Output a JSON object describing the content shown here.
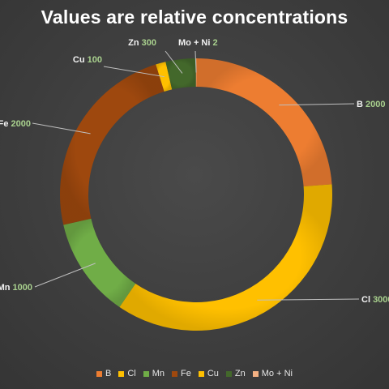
{
  "chart_data": {
    "type": "pie",
    "title": "Values are relative concentrations",
    "categories": [
      "B",
      "Cl",
      "Mn",
      "Fe",
      "Cu",
      "Zn",
      "Mo + Ni"
    ],
    "values": [
      2000,
      3000,
      1000,
      2000,
      100,
      300,
      2
    ],
    "colors": [
      "#ed7d31",
      "#ffc000",
      "#70ad47",
      "#9e480e",
      "#ffc000",
      "#43682b",
      "#f4b183"
    ],
    "data_labels": [
      {
        "name": "B",
        "value": "2000"
      },
      {
        "name": "Cl",
        "value": "3000"
      },
      {
        "name": "Mn",
        "value": "1000"
      },
      {
        "name": "Fe",
        "value": "2000"
      },
      {
        "name": "Cu",
        "value": "100"
      },
      {
        "name": "Zn",
        "value": "300"
      },
      {
        "name": "Mo + Ni",
        "value": "2"
      }
    ],
    "legend_position": "bottom",
    "donut": true
  }
}
